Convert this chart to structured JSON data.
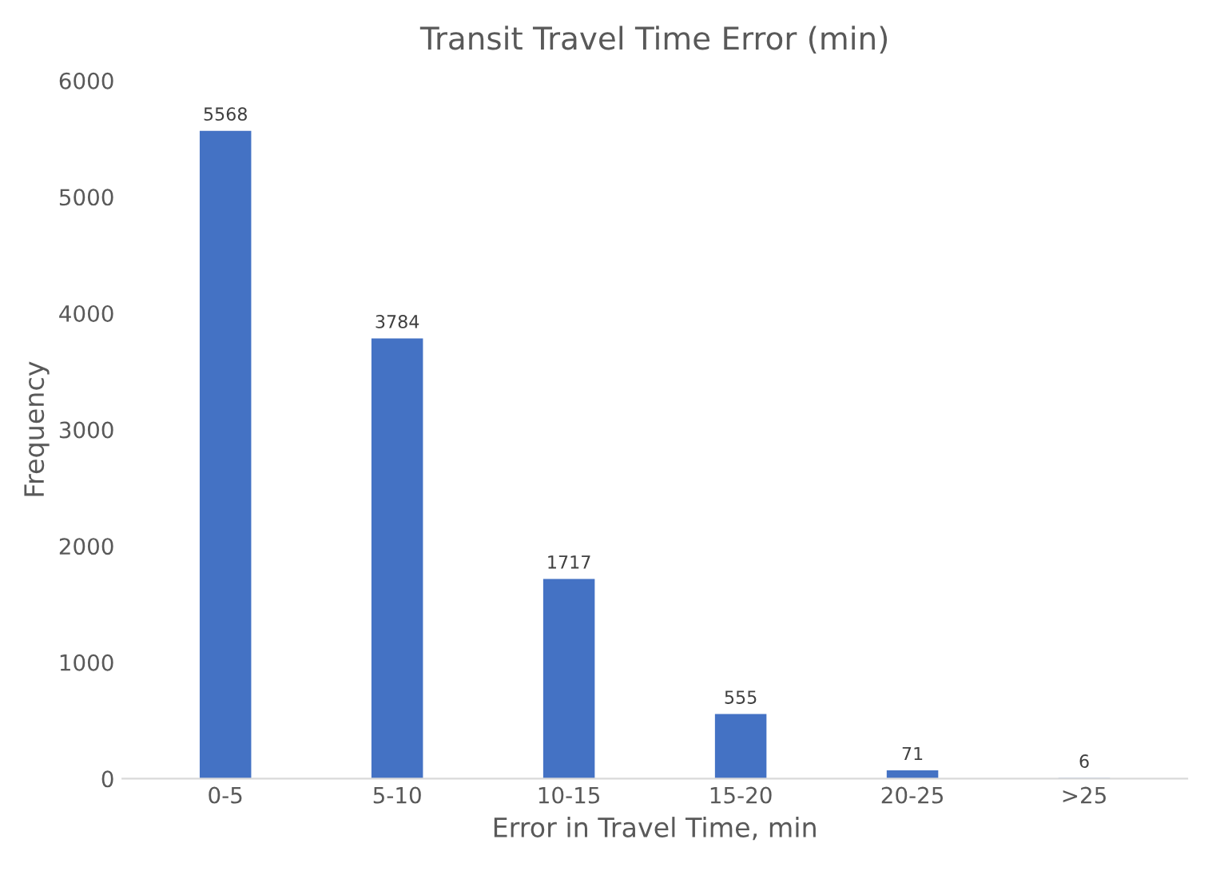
{
  "chart_data": {
    "type": "bar",
    "title": "Transit Travel Time Error (min)",
    "xlabel": "Error in Travel Time, min",
    "ylabel": "Frequency",
    "categories": [
      "0-5",
      "5-10",
      "10-15",
      "15-20",
      "20-25",
      ">25"
    ],
    "values": [
      5568,
      3784,
      1717,
      555,
      71,
      6
    ],
    "color": "#4472c4",
    "ylim": [
      0,
      6000
    ],
    "yticks": [
      0,
      1000,
      2000,
      3000,
      4000,
      5000,
      6000
    ],
    "grid": false,
    "data_labels": true
  }
}
